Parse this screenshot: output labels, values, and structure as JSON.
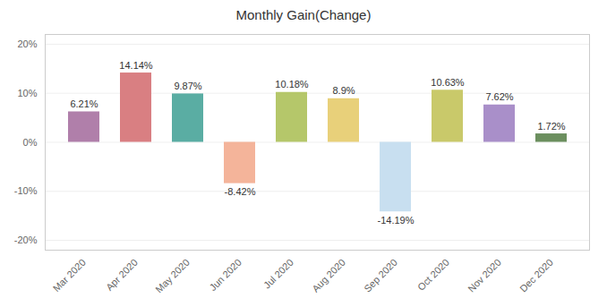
{
  "chart_data": {
    "type": "bar",
    "title": "Monthly Gain(Change)",
    "categories": [
      "Mar 2020",
      "Apr 2020",
      "May 2020",
      "Jun 2020",
      "Jul 2020",
      "Aug 2020",
      "Sep 2020",
      "Oct 2020",
      "Nov 2020",
      "Dec 2020"
    ],
    "values": [
      6.21,
      14.14,
      9.87,
      -8.42,
      10.18,
      8.9,
      -14.19,
      10.63,
      7.62,
      1.72
    ],
    "value_labels": [
      "6.21%",
      "14.14%",
      "9.87%",
      "-8.42%",
      "10.18%",
      "8.9%",
      "-14.19%",
      "10.63%",
      "7.62%",
      "1.72%"
    ],
    "colors": [
      "#b07faa",
      "#d97f82",
      "#5aada3",
      "#f4b49a",
      "#b5c76a",
      "#e8d07a",
      "#c8dff0",
      "#c9c96a",
      "#a98fc9",
      "#6b8f5e"
    ],
    "ylim": [
      -22,
      22
    ],
    "yticks": [
      {
        "value": -20,
        "label": "-20%"
      },
      {
        "value": -10,
        "label": "-10%"
      },
      {
        "value": 0,
        "label": "0%"
      },
      {
        "value": 10,
        "label": "10%"
      },
      {
        "value": 20,
        "label": "20%"
      }
    ],
    "grid": true,
    "data_labels": true
  }
}
